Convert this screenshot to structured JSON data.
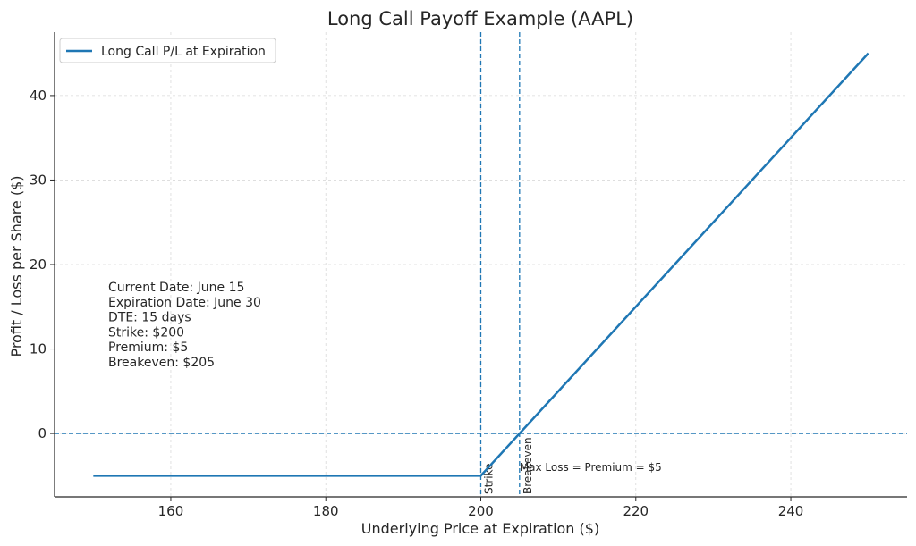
{
  "chart_data": {
    "type": "line",
    "title": "Long Call Payoff Example (AAPL)",
    "xlabel": "Underlying Price at Expiration ($)",
    "ylabel": "Profit / Loss per Share ($)",
    "xlim": [
      145,
      255
    ],
    "ylim": [
      -7.5,
      47.5
    ],
    "xticks": [
      160,
      180,
      200,
      220,
      240
    ],
    "yticks": [
      0,
      10,
      20,
      30,
      40
    ],
    "grid": true,
    "legend_position": "top-left",
    "series": [
      {
        "name": "Long Call P/L at Expiration",
        "color": "#1f77b4",
        "x": [
          150,
          200,
          250
        ],
        "y": [
          -5,
          -5,
          45
        ]
      }
    ],
    "reference_lines": [
      {
        "orientation": "horizontal",
        "value": 0,
        "color": "#1f77b4"
      },
      {
        "orientation": "vertical",
        "value": 200,
        "label": "Strike",
        "color": "#1f77b4"
      },
      {
        "orientation": "vertical",
        "value": 205,
        "label": "Breakeven",
        "color": "#1f77b4"
      }
    ],
    "annotations": [
      {
        "text": "Max Loss = Premium = $5",
        "x": 205,
        "y": -4
      }
    ],
    "info_box": [
      "Current Date: June 15",
      "Expiration Date: June 30",
      "DTE: 15 days",
      "Strike: $200",
      "Premium: $5",
      "Breakeven: $205"
    ]
  }
}
